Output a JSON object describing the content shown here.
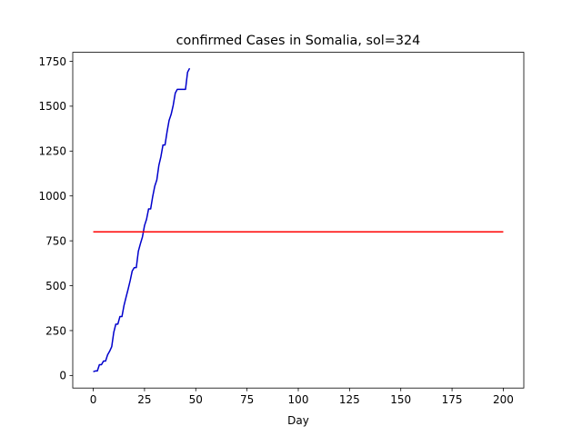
{
  "chart_data": {
    "type": "line",
    "title": "confirmed Cases in Somalia, sol=324",
    "xlabel": "Day",
    "ylabel": "",
    "xlim": [
      -10,
      210
    ],
    "ylim": [
      -70,
      1800
    ],
    "x_ticks": [
      0,
      25,
      50,
      75,
      100,
      125,
      150,
      175,
      200
    ],
    "y_ticks": [
      0,
      250,
      500,
      750,
      1000,
      1250,
      1500,
      1750
    ],
    "grid": false,
    "series": [
      {
        "color": "#0000cc",
        "x": [
          0,
          1,
          2,
          3,
          4,
          5,
          6,
          7,
          8,
          9,
          10,
          11,
          12,
          13,
          14,
          15,
          16,
          17,
          18,
          19,
          20,
          21,
          22,
          23,
          24,
          25,
          26,
          27,
          28,
          29,
          30,
          31,
          32,
          33,
          34,
          35,
          36,
          37,
          38,
          39,
          40,
          41,
          42,
          43,
          44,
          45,
          46,
          47
        ],
        "y": [
          21,
          25,
          25,
          60,
          60,
          80,
          80,
          115,
          135,
          160,
          240,
          286,
          286,
          328,
          328,
          390,
          436,
          480,
          528,
          582,
          601,
          601,
          692,
          734,
          772,
          835,
          870,
          928,
          928,
          997,
          1054,
          1089,
          1170,
          1219,
          1284,
          1284,
          1357,
          1421,
          1455,
          1505,
          1573,
          1594,
          1594,
          1594,
          1594,
          1594,
          1689,
          1711
        ]
      },
      {
        "color": "#ff0000",
        "x": [
          0,
          200
        ],
        "y": [
          800,
          800
        ]
      }
    ]
  }
}
